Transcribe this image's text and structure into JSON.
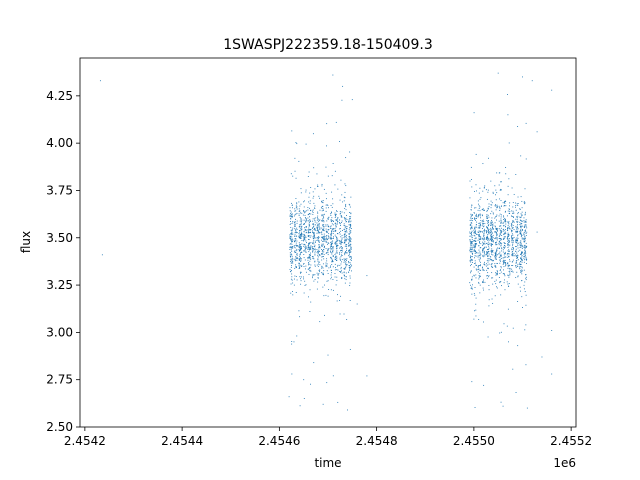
{
  "chart_data": {
    "type": "scatter",
    "title": "1SWASPJ222359.18-150409.3",
    "xlabel": "time",
    "ylabel": "flux",
    "x_offset_label": "1e6",
    "xlim": [
      2.45419,
      2.45521
    ],
    "ylim": [
      2.5,
      4.45
    ],
    "x_ticks": [
      2.4542,
      2.4544,
      2.4546,
      2.4548,
      2.455,
      2.4552
    ],
    "x_tick_labels": [
      "2.4542",
      "2.4544",
      "2.4546",
      "2.4548",
      "2.4550",
      "2.4552"
    ],
    "y_ticks": [
      2.5,
      2.75,
      3.0,
      3.25,
      3.5,
      3.75,
      4.0,
      4.25
    ],
    "y_tick_labels": [
      "2.50",
      "2.75",
      "3.00",
      "3.25",
      "3.50",
      "3.75",
      "4.00",
      "4.25"
    ],
    "grid": false,
    "marker_color": "#1f77b4",
    "series": [
      {
        "center": 3.48,
        "points": [
          [
            2.454232,
            4.33
          ],
          [
            2.454236,
            3.41
          ]
        ],
        "clusters": [
          {
            "x_start": 2.45462,
            "x_end": 2.45475,
            "n": 1400
          },
          {
            "x_start": 2.45499,
            "x_end": 2.45511,
            "n": 1400
          }
        ],
        "outliers": [
          [
            2.45462,
            2.66
          ],
          [
            2.45463,
            2.95
          ],
          [
            2.45465,
            2.75
          ],
          [
            2.45467,
            4.05
          ],
          [
            2.45469,
            2.62
          ],
          [
            2.4547,
            2.88
          ],
          [
            2.45471,
            4.36
          ],
          [
            2.45472,
            2.63
          ],
          [
            2.45473,
            4.3
          ],
          [
            2.45474,
            2.59
          ],
          [
            2.45475,
            4.23
          ],
          [
            2.45476,
            3.15
          ],
          [
            2.45478,
            2.77
          ],
          [
            2.45478,
            3.3
          ],
          [
            2.455,
            3.07
          ],
          [
            2.45502,
            2.72
          ],
          [
            2.45503,
            3.92
          ],
          [
            2.45505,
            4.37
          ],
          [
            2.45506,
            2.61
          ],
          [
            2.45507,
            4.15
          ],
          [
            2.45509,
            2.93
          ],
          [
            2.4551,
            4.35
          ],
          [
            2.45511,
            2.6
          ],
          [
            2.45512,
            4.33
          ],
          [
            2.45513,
            3.53
          ],
          [
            2.45513,
            4.06
          ],
          [
            2.45516,
            4.28
          ],
          [
            2.45516,
            3.01
          ],
          [
            2.45516,
            2.78
          ],
          [
            2.45514,
            2.87
          ]
        ]
      }
    ]
  }
}
